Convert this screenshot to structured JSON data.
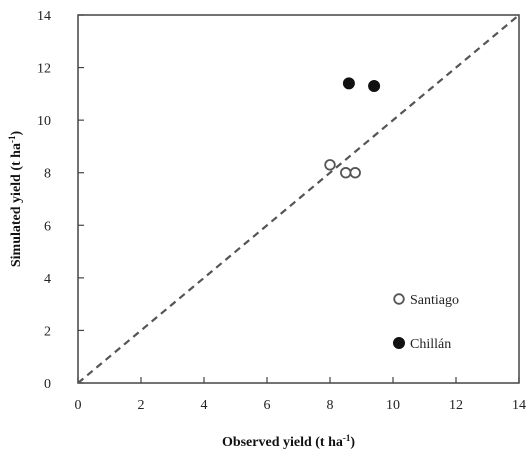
{
  "chart_data": {
    "type": "scatter",
    "xlabel": "Observed yield (t ha",
    "xlabel_unit_sup": "-1",
    "xlabel_suffix": ")",
    "ylabel": "Simulated yield (t ha",
    "ylabel_unit_sup": "-1",
    "ylabel_suffix": ")",
    "xlim": [
      0,
      14
    ],
    "ylim": [
      0,
      14
    ],
    "xticks": [
      0,
      2,
      4,
      6,
      8,
      10,
      12,
      14
    ],
    "yticks": [
      0,
      2,
      4,
      6,
      8,
      10,
      12,
      14
    ],
    "grid": false,
    "legend_position": "bottom-right",
    "reference_line": {
      "style": "dashed",
      "description": "1:1 line",
      "color": "#555555"
    },
    "series": [
      {
        "name": "Santiago",
        "marker": "open-circle",
        "color": "#555555",
        "points": [
          {
            "x": 8.0,
            "y": 8.3
          },
          {
            "x": 8.5,
            "y": 8.0
          },
          {
            "x": 8.8,
            "y": 8.0
          }
        ]
      },
      {
        "name": "Chillán",
        "marker": "filled-circle",
        "color": "#111111",
        "points": [
          {
            "x": 8.6,
            "y": 11.4
          },
          {
            "x": 9.4,
            "y": 11.3
          }
        ]
      }
    ]
  }
}
